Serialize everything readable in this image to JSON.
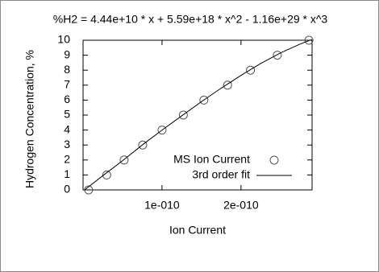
{
  "chart_data": {
    "type": "scatter",
    "title": "%H2 = 4.44e+10 * x + 5.59e+18 * x^2 - 1.16e+29 * x^3",
    "x_label": "Ion Current",
    "y_label": "Hydrogen Concentration, %",
    "xlim": [
      0,
      2.9e-10
    ],
    "ylim": [
      0,
      10
    ],
    "xticks": [
      {
        "value": 1e-10,
        "label": "1e-010"
      },
      {
        "value": 2e-10,
        "label": "2e-010"
      }
    ],
    "yticks": [
      0,
      1,
      2,
      3,
      4,
      5,
      6,
      7,
      8,
      9,
      10
    ],
    "legend": "lower right",
    "series": [
      {
        "name": "MS Ion Current",
        "style": "points",
        "color": "#555555",
        "x": [
          7e-12,
          3e-11,
          5.2e-11,
          7.55e-11,
          1e-10,
          1.27e-10,
          1.53e-10,
          1.83e-10,
          2.12e-10,
          2.46e-10,
          2.86e-10
        ],
        "values": [
          0,
          1,
          2,
          3,
          4,
          5,
          6,
          7,
          8,
          9,
          10
        ]
      },
      {
        "name": "3rd order fit",
        "style": "line",
        "color": "#000000",
        "x": [
          2e-12,
          2.5e-11,
          5e-11,
          7.5e-11,
          1e-10,
          1.25e-10,
          1.5e-10,
          1.75e-10,
          2e-10,
          2.25e-10,
          2.5e-10,
          2.75e-10,
          2.9e-10
        ],
        "values": [
          0,
          0.95,
          1.95,
          3.0,
          4.0,
          4.95,
          5.9,
          6.8,
          7.65,
          8.45,
          9.15,
          9.75,
          10.05
        ]
      }
    ]
  }
}
